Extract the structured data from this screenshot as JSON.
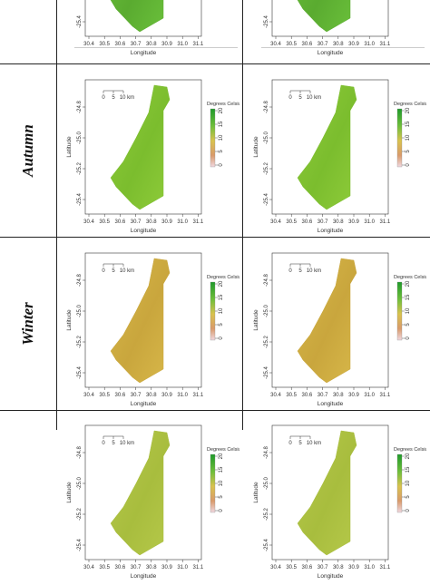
{
  "seasons": [
    {
      "label": "",
      "color": "#6cc23c",
      "color_shade": "#5aab30"
    },
    {
      "label": "Autumn",
      "color": "#8fcc3a",
      "color_shade": "#7bbd2e"
    },
    {
      "label": "Winter",
      "color": "#d8b84a",
      "color_shade": "#c9a63d"
    },
    {
      "label": "",
      "color": "#b6c94a",
      "color_shade": "#a8bd3e"
    }
  ],
  "axes": {
    "x_label": "Longitude",
    "y_label": "Latitude",
    "x_ticks": [
      "30.4",
      "30.5",
      "30.6",
      "30.7",
      "30.8",
      "30.9",
      "31.0",
      "31.1"
    ],
    "y_ticks": [
      "-24.8",
      "-25.0",
      "-25.2",
      "-25.4"
    ]
  },
  "scale_bar": {
    "ticks": [
      "0",
      "5",
      "10 km"
    ]
  },
  "legend": {
    "title": "Degrees Celsius",
    "ticks": [
      "20",
      "15",
      "10",
      "5",
      "0"
    ],
    "colors": {
      "top": "#1e9a2a",
      "upper": "#6fbf3a",
      "mid": "#d9c24e",
      "lower": "#d99a6a",
      "bottom": "#f0d8e0"
    }
  }
}
